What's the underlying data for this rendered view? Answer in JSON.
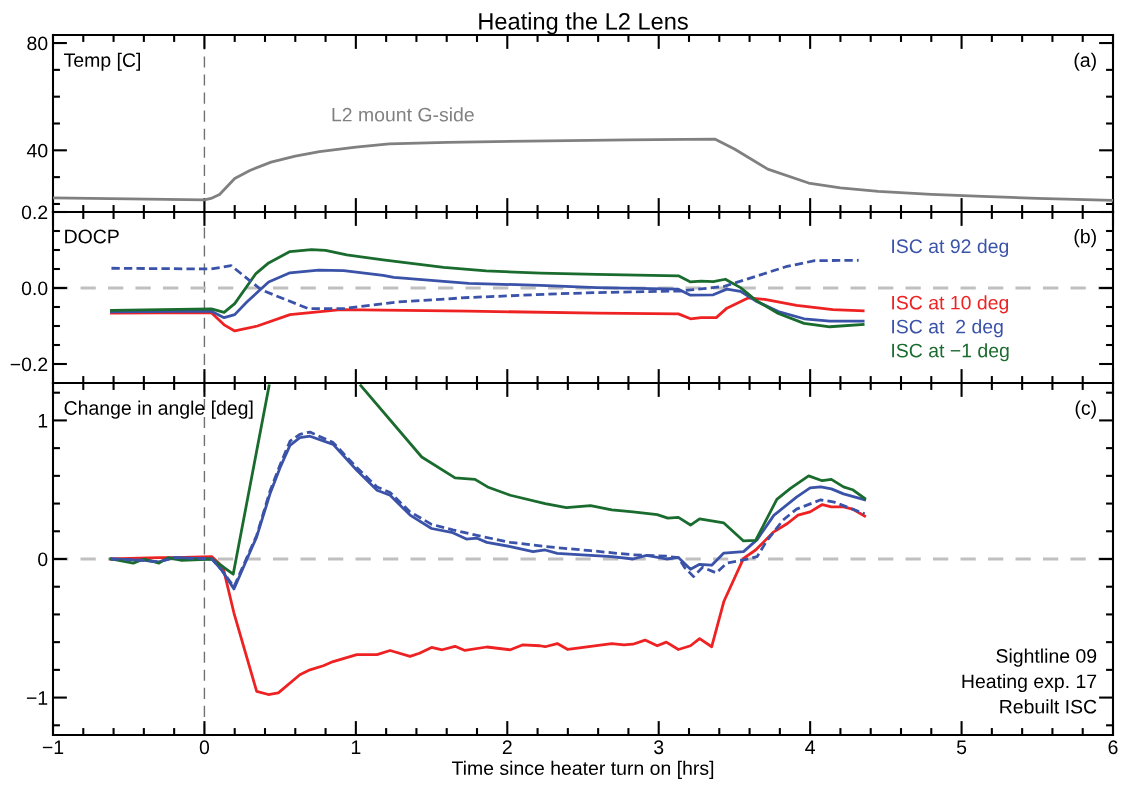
{
  "chart_data": [
    {
      "type": "line",
      "title": "Heating the L2 Lens",
      "ylabel": "Temp [C]",
      "annotations": [
        "(a)"
      ],
      "tick_labels": "y",
      "grid": false,
      "legend": false,
      "xlim": [
        -1,
        6
      ],
      "xticks": [
        -1,
        {
          "value": -0.8,
          "label": null
        },
        {
          "value": -0.6,
          "label": null
        },
        {
          "value": -0.4,
          "label": null
        },
        {
          "value": -0.2,
          "label": null
        },
        0,
        {
          "value": 0.2,
          "label": null
        },
        {
          "value": 0.4,
          "label": null
        },
        {
          "value": 0.6,
          "label": null
        },
        {
          "value": 0.8,
          "label": null
        },
        1,
        {
          "value": 1.2,
          "label": null
        },
        {
          "value": 1.4,
          "label": null
        },
        {
          "value": 1.6,
          "label": null
        },
        {
          "value": 1.8,
          "label": null
        },
        2,
        {
          "value": 2.2,
          "label": null
        },
        {
          "value": 2.4,
          "label": null
        },
        {
          "value": 2.6,
          "label": null
        },
        {
          "value": 2.8,
          "label": null
        },
        3,
        {
          "value": 3.2,
          "label": null
        },
        {
          "value": 3.4,
          "label": null
        },
        {
          "value": 3.6,
          "label": null
        },
        {
          "value": 3.8,
          "label": null
        },
        4,
        {
          "value": 4.2,
          "label": null
        },
        {
          "value": 4.4,
          "label": null
        },
        {
          "value": 4.6,
          "label": null
        },
        {
          "value": 4.8,
          "label": null
        },
        5,
        {
          "value": 5.2,
          "label": null
        },
        {
          "value": 5.4,
          "label": null
        },
        {
          "value": 5.6,
          "label": null
        },
        {
          "value": 5.8,
          "label": null
        },
        6
      ],
      "ylim": [
        17,
        83
      ],
      "yticks": [
        {
          "value": 20,
          "label": null
        },
        {
          "value": 30,
          "label": null
        },
        40,
        {
          "value": 50,
          "label": null
        },
        {
          "value": 60,
          "label": null
        },
        {
          "value": 70,
          "label": null
        },
        80
      ],
      "ref_lines": [
        {
          "axis": "x",
          "value": 0,
          "color": "#707070",
          "line_style": "dashed"
        }
      ],
      "series": [
        {
          "name": "L2 mount G-side",
          "color": "#808080",
          "x": [
            -1,
            -0.5,
            0,
            0.05,
            0.1,
            0.2,
            0.3,
            0.44,
            0.6,
            0.76,
            1.0,
            1.22,
            1.6,
            2.14,
            2.8,
            3.37,
            3.5,
            3.72,
            3.99,
            4.2,
            4.45,
            4.8,
            5.14,
            5.5,
            6
          ],
          "values": [
            22.3,
            21.9,
            21.5,
            22.2,
            23.5,
            29.5,
            32.5,
            35.6,
            37.8,
            39.5,
            41.2,
            42.4,
            43.0,
            43.4,
            43.9,
            44.2,
            40.5,
            33,
            27.8,
            26.0,
            24.7,
            23.6,
            22.8,
            22.1,
            21.3
          ]
        }
      ]
    },
    {
      "type": "line",
      "ylabel": "DOCP",
      "annotations": [
        "(b)"
      ],
      "tick_labels": "y",
      "grid": false,
      "legend": false,
      "xlim": [
        -1,
        6
      ],
      "xticks": [
        -1,
        {
          "value": -0.8,
          "label": null
        },
        {
          "value": -0.6,
          "label": null
        },
        {
          "value": -0.4,
          "label": null
        },
        {
          "value": -0.2,
          "label": null
        },
        0,
        {
          "value": 0.2,
          "label": null
        },
        {
          "value": 0.4,
          "label": null
        },
        {
          "value": 0.6,
          "label": null
        },
        {
          "value": 0.8,
          "label": null
        },
        1,
        {
          "value": 1.2,
          "label": null
        },
        {
          "value": 1.4,
          "label": null
        },
        {
          "value": 1.6,
          "label": null
        },
        {
          "value": 1.8,
          "label": null
        },
        2,
        {
          "value": 2.2,
          "label": null
        },
        {
          "value": 2.4,
          "label": null
        },
        {
          "value": 2.6,
          "label": null
        },
        {
          "value": 2.8,
          "label": null
        },
        3,
        {
          "value": 3.2,
          "label": null
        },
        {
          "value": 3.4,
          "label": null
        },
        {
          "value": 3.6,
          "label": null
        },
        {
          "value": 3.8,
          "label": null
        },
        4,
        {
          "value": 4.2,
          "label": null
        },
        {
          "value": 4.4,
          "label": null
        },
        {
          "value": 4.6,
          "label": null
        },
        {
          "value": 4.8,
          "label": null
        },
        5,
        {
          "value": 5.2,
          "label": null
        },
        {
          "value": 5.4,
          "label": null
        },
        {
          "value": 5.6,
          "label": null
        },
        {
          "value": 5.8,
          "label": null
        },
        6
      ],
      "ylim": [
        -0.25,
        0.2
      ],
      "yticks": [
        {
          "value": -0.2,
          "label": "−0.2"
        },
        {
          "value": -0.15,
          "label": null
        },
        {
          "value": -0.1,
          "label": null
        },
        {
          "value": -0.05,
          "label": null
        },
        {
          "value": 0,
          "label": "0.0"
        },
        {
          "value": 0.05,
          "label": null
        },
        {
          "value": 0.1,
          "label": null
        },
        {
          "value": 0.15,
          "label": null
        },
        {
          "value": 0.2,
          "label": "0.2"
        }
      ],
      "ref_lines": [
        {
          "axis": "x",
          "value": 0,
          "color": "#707070",
          "line_style": "dashed"
        },
        {
          "axis": "y",
          "value": 0,
          "color": "#c0c0c0",
          "line_style": "dashed"
        }
      ],
      "series": [
        {
          "name": "ISC at 92 deg",
          "color": "#3a52a8",
          "line_style": "dashed",
          "x": [
            -0.614,
            0.046,
            0.176,
            0.376,
            0.684,
            0.92,
            1.27,
            1.745,
            2.35,
            2.59,
            3.14,
            3.43,
            3.62,
            3.84,
            4.03,
            4.32
          ],
          "values": [
            0.052,
            0.05,
            0.059,
            -0.005,
            -0.054,
            -0.054,
            -0.037,
            -0.025,
            -0.015,
            -0.012,
            -0.008,
            0.004,
            0.028,
            0.056,
            0.072,
            0.073
          ]
        },
        {
          "name": "ISC at 10 deg",
          "color": "#ee2222",
          "x": [
            -0.614,
            0.046,
            0.13,
            0.2,
            0.35,
            0.565,
            0.9,
            1.18,
            1.745,
            2.59,
            3.13,
            3.21,
            3.28,
            3.38,
            3.45,
            3.59,
            3.7,
            3.91,
            4.15,
            4.35
          ],
          "values": [
            -0.066,
            -0.065,
            -0.097,
            -0.113,
            -0.1,
            -0.07,
            -0.057,
            -0.058,
            -0.061,
            -0.066,
            -0.068,
            -0.081,
            -0.078,
            -0.078,
            -0.053,
            -0.026,
            -0.03,
            -0.046,
            -0.057,
            -0.06
          ]
        },
        {
          "name": "ISC at  2 deg",
          "color": "#3a52a8",
          "x": [
            -0.614,
            0.046,
            0.13,
            0.2,
            0.28,
            0.424,
            0.565,
            0.754,
            0.92,
            1.18,
            1.25,
            1.745,
            2.22,
            2.59,
            3.13,
            3.21,
            3.36,
            3.45,
            3.54,
            3.64,
            3.79,
            3.96,
            4.13,
            4.35
          ],
          "values": [
            -0.063,
            -0.061,
            -0.078,
            -0.07,
            -0.037,
            0.016,
            0.04,
            0.047,
            0.046,
            0.033,
            0.028,
            0.012,
            0.007,
            0.001,
            -0.003,
            -0.019,
            -0.018,
            -0.003,
            -0.009,
            -0.034,
            -0.062,
            -0.081,
            -0.087,
            -0.087
          ]
        },
        {
          "name": "ISC at −1 deg",
          "color": "#1a6b2e",
          "x": [
            -0.614,
            0.046,
            0.13,
            0.2,
            0.34,
            0.424,
            0.565,
            0.707,
            0.8,
            0.94,
            1.18,
            1.58,
            1.86,
            2.22,
            2.59,
            3.13,
            3.21,
            3.28,
            3.36,
            3.44,
            3.54,
            3.64,
            3.79,
            3.96,
            4.13,
            4.35
          ],
          "values": [
            -0.059,
            -0.055,
            -0.064,
            -0.041,
            0.038,
            0.066,
            0.096,
            0.101,
            0.099,
            0.087,
            0.074,
            0.054,
            0.045,
            0.039,
            0.036,
            0.032,
            0.016,
            0.018,
            0.017,
            0.023,
            0.001,
            -0.032,
            -0.067,
            -0.093,
            -0.102,
            -0.096
          ]
        }
      ]
    },
    {
      "type": "line",
      "ylabel": "Change in angle [deg]",
      "xlabel": "Time since heater turn on [hrs]",
      "annotations": [
        "(c)",
        "Sightline 09",
        "Heating exp. 17",
        "Rebuilt ISC"
      ],
      "grid": false,
      "legend": false,
      "xlim": [
        -1,
        6
      ],
      "xticks": [
        {
          "value": -1,
          "label": "−1"
        },
        {
          "value": -0.8,
          "label": null
        },
        {
          "value": -0.6,
          "label": null
        },
        {
          "value": -0.4,
          "label": null
        },
        {
          "value": -0.2,
          "label": null
        },
        0,
        {
          "value": 0.2,
          "label": null
        },
        {
          "value": 0.4,
          "label": null
        },
        {
          "value": 0.6,
          "label": null
        },
        {
          "value": 0.8,
          "label": null
        },
        1,
        {
          "value": 1.2,
          "label": null
        },
        {
          "value": 1.4,
          "label": null
        },
        {
          "value": 1.6,
          "label": null
        },
        {
          "value": 1.8,
          "label": null
        },
        2,
        {
          "value": 2.2,
          "label": null
        },
        {
          "value": 2.4,
          "label": null
        },
        {
          "value": 2.6,
          "label": null
        },
        {
          "value": 2.8,
          "label": null
        },
        3,
        {
          "value": 3.2,
          "label": null
        },
        {
          "value": 3.4,
          "label": null
        },
        {
          "value": 3.6,
          "label": null
        },
        {
          "value": 3.8,
          "label": null
        },
        4,
        {
          "value": 4.2,
          "label": null
        },
        {
          "value": 4.4,
          "label": null
        },
        {
          "value": 4.6,
          "label": null
        },
        {
          "value": 4.8,
          "label": null
        },
        5,
        {
          "value": 5.2,
          "label": null
        },
        {
          "value": 5.4,
          "label": null
        },
        {
          "value": 5.6,
          "label": null
        },
        {
          "value": 5.8,
          "label": null
        },
        6
      ],
      "ylim": [
        -1.27,
        1.27
      ],
      "yticks": [
        {
          "value": -1.2,
          "label": null
        },
        {
          "value": -1,
          "label": "−1"
        },
        {
          "value": -0.8,
          "label": null
        },
        {
          "value": -0.6,
          "label": null
        },
        {
          "value": -0.4,
          "label": null
        },
        {
          "value": -0.2,
          "label": null
        },
        0,
        {
          "value": 0.2,
          "label": null
        },
        {
          "value": 0.4,
          "label": null
        },
        {
          "value": 0.6,
          "label": null
        },
        {
          "value": 0.8,
          "label": null
        },
        1,
        {
          "value": 1.2,
          "label": null
        }
      ],
      "ref_lines": [
        {
          "axis": "x",
          "value": 0,
          "color": "#707070",
          "line_style": "dashed"
        },
        {
          "axis": "y",
          "value": 0,
          "color": "#c0c0c0",
          "line_style": "dashed"
        }
      ],
      "series": [
        {
          "color": "#3a52a8",
          "line_style": "dashed",
          "x": [
            -0.617,
            -0.4,
            -0.3,
            -0.2,
            0.05,
            0.114,
            0.195,
            0.345,
            0.433,
            0.5,
            0.565,
            0.63,
            0.697,
            0.85,
            1.006,
            1.14,
            1.226,
            1.358,
            1.5,
            1.64,
            1.8,
            2.02,
            2.25,
            2.55,
            2.83,
            3.05,
            3.13,
            3.17,
            3.23,
            3.29,
            3.38,
            3.45,
            3.56,
            3.65,
            3.71,
            3.82,
            3.91,
            4.07,
            4.16,
            4.28,
            4.36
          ],
          "values": [
            0,
            -0.01,
            -0.02,
            0.01,
            0,
            -0.08,
            -0.2,
            0.17,
            0.49,
            0.68,
            0.85,
            0.9,
            0.916,
            0.84,
            0.66,
            0.52,
            0.48,
            0.34,
            0.25,
            0.21,
            0.17,
            0.12,
            0.09,
            0.06,
            0.03,
            0.02,
            0.01,
            -0.06,
            -0.127,
            -0.06,
            -0.1,
            -0.03,
            -0.007,
            0.017,
            0.125,
            0.28,
            0.36,
            0.427,
            0.41,
            0.36,
            0.326
          ]
        },
        {
          "color": "#ee2222",
          "x": [
            -0.617,
            -0.3,
            -0.2,
            0.05,
            0.123,
            0.195,
            0.345,
            0.422,
            0.488,
            0.63,
            0.697,
            0.785,
            0.85,
            1.006,
            1.14,
            1.226,
            1.358,
            1.42,
            1.5,
            1.57,
            1.655,
            1.72,
            1.865,
            2.02,
            2.1,
            2.215,
            2.25,
            2.33,
            2.4,
            2.69,
            2.77,
            2.83,
            2.91,
            2.99,
            3.05,
            3.13,
            3.21,
            3.27,
            3.35,
            3.43,
            3.56,
            3.64,
            3.76,
            3.85,
            3.92,
            4.0,
            4.08,
            4.14,
            4.22,
            4.28,
            4.36
          ],
          "values": [
            0,
            0.01,
            0.01,
            0.017,
            -0.06,
            -0.39,
            -0.955,
            -0.978,
            -0.966,
            -0.835,
            -0.8,
            -0.77,
            -0.74,
            -0.69,
            -0.69,
            -0.66,
            -0.703,
            -0.68,
            -0.638,
            -0.655,
            -0.63,
            -0.66,
            -0.635,
            -0.655,
            -0.62,
            -0.626,
            -0.633,
            -0.61,
            -0.653,
            -0.61,
            -0.62,
            -0.615,
            -0.585,
            -0.626,
            -0.6,
            -0.653,
            -0.626,
            -0.575,
            -0.633,
            -0.307,
            0.005,
            0.065,
            0.196,
            0.256,
            0.316,
            0.34,
            0.393,
            0.376,
            0.376,
            0.36,
            0.31
          ]
        },
        {
          "color": "#3a52a8",
          "x": [
            -0.617,
            -0.4,
            -0.3,
            -0.2,
            0.05,
            0.114,
            0.195,
            0.345,
            0.433,
            0.5,
            0.565,
            0.63,
            0.697,
            0.85,
            1.006,
            1.14,
            1.226,
            1.358,
            1.5,
            1.64,
            1.73,
            1.8,
            1.865,
            2.02,
            2.17,
            2.25,
            2.33,
            2.55,
            2.69,
            2.83,
            2.92,
            3.05,
            3.13,
            3.21,
            3.27,
            3.35,
            3.43,
            3.56,
            3.65,
            3.76,
            3.91,
            4.0,
            4.07,
            4.14,
            4.22,
            4.36
          ],
          "values": [
            0,
            -0.01,
            -0.02,
            0.01,
            0,
            -0.08,
            -0.216,
            0.16,
            0.47,
            0.66,
            0.82,
            0.876,
            0.886,
            0.827,
            0.64,
            0.496,
            0.46,
            0.317,
            0.22,
            0.19,
            0.144,
            0.15,
            0.12,
            0.09,
            0.053,
            0.065,
            0.04,
            0.026,
            0.017,
            0,
            0.026,
            0,
            0.01,
            -0.074,
            -0.038,
            -0.045,
            0.043,
            0.053,
            0.14,
            0.315,
            0.446,
            0.513,
            0.52,
            0.506,
            0.47,
            0.427
          ]
        },
        {
          "color": "#1a6b2e",
          "x": [
            -0.617,
            -0.47,
            -0.4,
            -0.3,
            -0.24,
            -0.15,
            0.05,
            0.19,
            0.427,
            0.7,
            1.033,
            1.435,
            1.655,
            1.787,
            1.87,
            2.02,
            2.25,
            2.39,
            2.55,
            2.69,
            2.83,
            2.99,
            3.06,
            3.13,
            3.21,
            3.27,
            3.43,
            3.56,
            3.64,
            3.78,
            3.87,
            3.99,
            4.08,
            4.14,
            4.22,
            4.28,
            4.36
          ],
          "values": [
            0,
            -0.03,
            0,
            -0.03,
            0.01,
            -0.01,
            0,
            -0.11,
            1.25,
            null,
            1.25,
            0.736,
            0.585,
            0.575,
            0.52,
            0.46,
            0.4,
            0.37,
            0.385,
            0.355,
            0.34,
            0.32,
            0.295,
            0.3,
            0.245,
            0.29,
            0.26,
            0.13,
            0.135,
            0.43,
            0.51,
            0.6,
            0.565,
            0.575,
            0.52,
            0.5,
            0.437
          ]
        }
      ]
    }
  ]
}
